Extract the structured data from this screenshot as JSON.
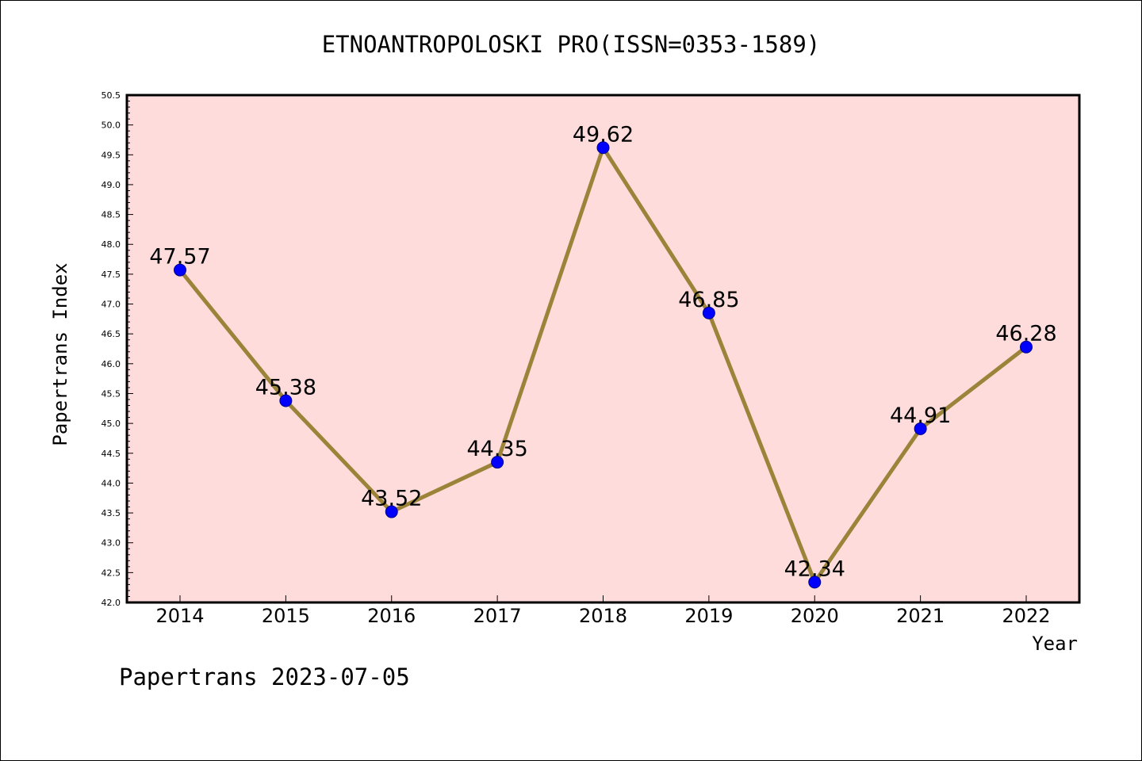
{
  "chart_data": {
    "type": "line",
    "title": "ETNOANTROPOLOSKI PRO(ISSN=0353-1589)",
    "xlabel": "Year",
    "ylabel": "Papertrans Index",
    "footer": "Papertrans 2023-07-05",
    "x": [
      "2014",
      "2015",
      "2016",
      "2017",
      "2018",
      "2019",
      "2020",
      "2021",
      "2022"
    ],
    "values": [
      47.57,
      45.38,
      43.52,
      44.35,
      49.62,
      46.85,
      42.34,
      44.91,
      46.28
    ],
    "data_labels": [
      "47.57",
      "45.38",
      "43.52",
      "44.35",
      "49.62",
      "46.85",
      "42.34",
      "44.91",
      "46.28"
    ],
    "ylim": [
      42.0,
      50.5
    ],
    "yticks": [
      "42.0",
      "42.5",
      "43.0",
      "43.5",
      "44.0",
      "44.5",
      "45.0",
      "45.5",
      "46.0",
      "46.5",
      "47.0",
      "47.5",
      "48.0",
      "48.5",
      "49.0",
      "49.5",
      "50.0",
      "50.5"
    ],
    "grid": false,
    "colors": {
      "plot_background": "#ffdcdc",
      "line": "#9b8439",
      "marker": "#0000ff",
      "axis": "#000000"
    }
  }
}
